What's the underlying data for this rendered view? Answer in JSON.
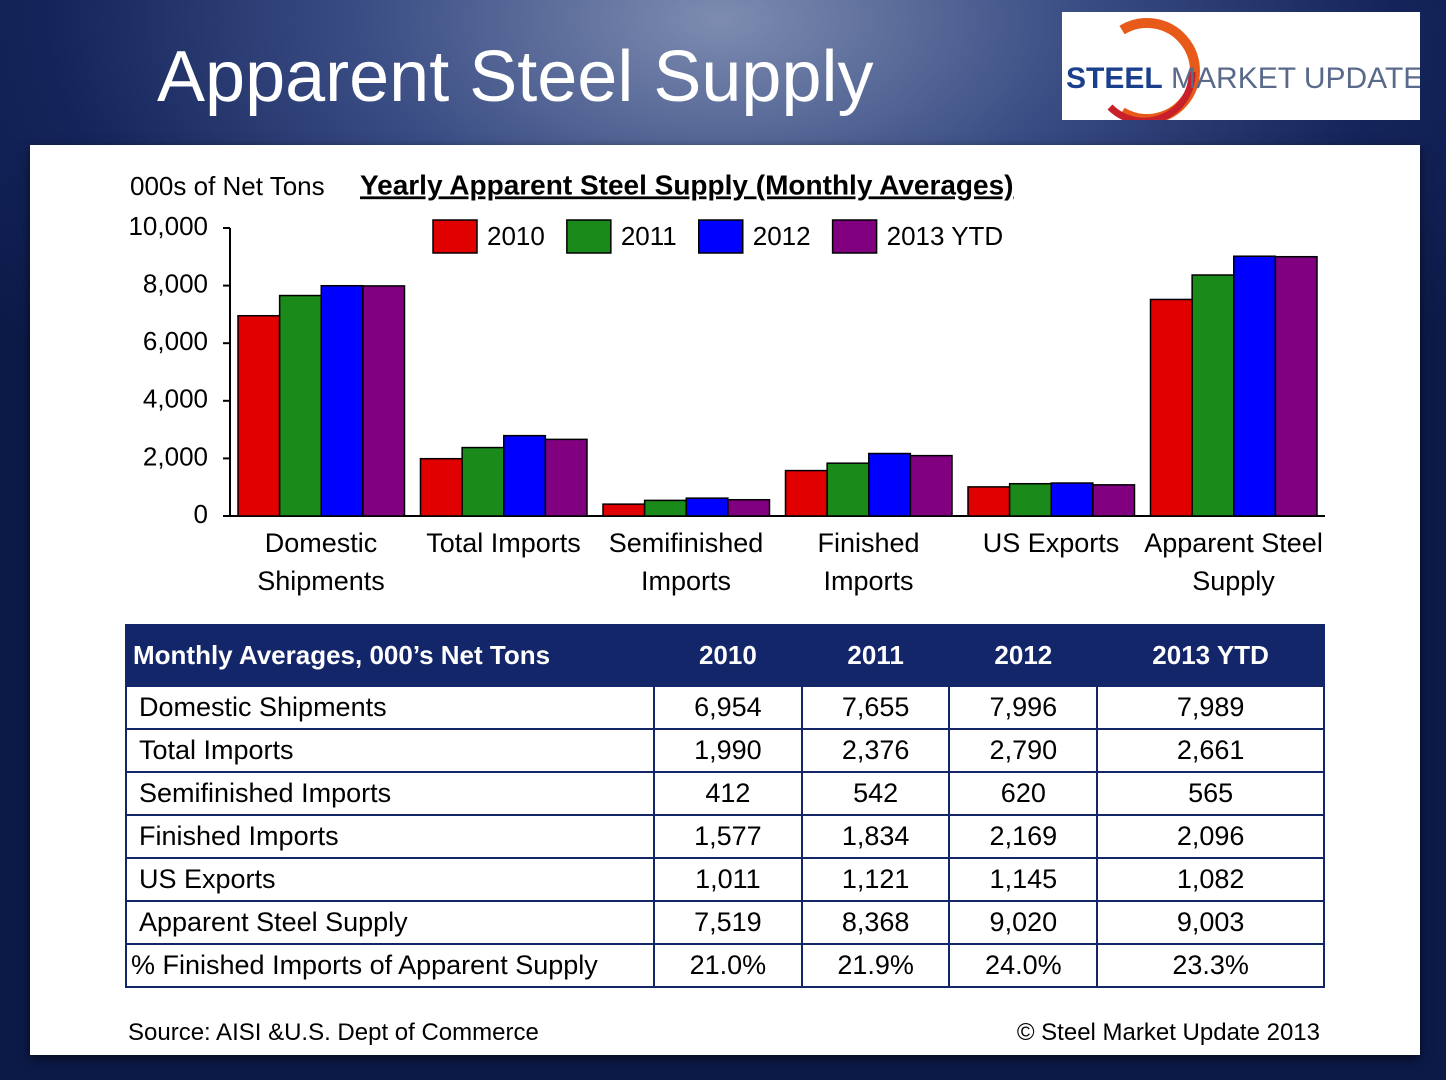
{
  "title": "Apparent Steel Supply",
  "logo": {
    "bold": "STEEL",
    "rest": "MARKET UPDATE"
  },
  "chart_data": {
    "type": "bar",
    "title": "Yearly Apparent Steel Supply (Monthly Averages)",
    "y_label": "000s of Net Tons",
    "categories": [
      "Domestic Shipments",
      "Total Imports",
      "Semifinished Imports",
      "Finished Imports",
      "US Exports",
      "Apparent Steel Supply"
    ],
    "series": [
      {
        "name": "2010",
        "color": "#e00000",
        "values": [
          6954,
          1990,
          412,
          1577,
          1011,
          7519
        ]
      },
      {
        "name": "2011",
        "color": "#1a8a1a",
        "values": [
          7655,
          2376,
          542,
          1834,
          1121,
          8368
        ]
      },
      {
        "name": "2012",
        "color": "#0000ff",
        "values": [
          7996,
          2790,
          620,
          2169,
          1145,
          9020
        ]
      },
      {
        "name": "2013 YTD",
        "color": "#800080",
        "values": [
          7989,
          2661,
          565,
          2096,
          1082,
          9003
        ]
      }
    ],
    "ylim": [
      0,
      10000
    ],
    "yticks": [
      0,
      {
        "value": 2000,
        "label": "2,000"
      },
      {
        "value": 4000,
        "label": "4,000"
      },
      {
        "value": 6000,
        "label": "6,000"
      },
      {
        "value": 8000,
        "label": "8,000"
      },
      {
        "value": 10000,
        "label": "10,000"
      }
    ],
    "grid": false,
    "legend": "top"
  },
  "table": {
    "header": [
      "Monthly Averages, 000’s Net Tons",
      "2010",
      "2011",
      "2012",
      "2013 YTD"
    ],
    "rows": [
      [
        "Domestic Shipments",
        "6,954",
        "7,655",
        "7,996",
        "7,989"
      ],
      [
        "Total Imports",
        "1,990",
        "2,376",
        "2,790",
        "2,661"
      ],
      [
        "Semifinished Imports",
        "412",
        "542",
        "620",
        "565"
      ],
      [
        "Finished Imports",
        "1,577",
        "1,834",
        "2,169",
        "2,096"
      ],
      [
        "US Exports",
        "1,011",
        "1,121",
        "1,145",
        "1,082"
      ],
      [
        "Apparent Steel Supply",
        "7,519",
        "8,368",
        "9,020",
        "9,003"
      ],
      [
        "% Finished Imports of Apparent Supply",
        "21.0%",
        "21.9%",
        "24.0%",
        "23.3%"
      ]
    ]
  },
  "footer": {
    "source": "Source:  AISI &U.S. Dept of Commerce",
    "copyright": "©    Steel Market Update 2013"
  }
}
